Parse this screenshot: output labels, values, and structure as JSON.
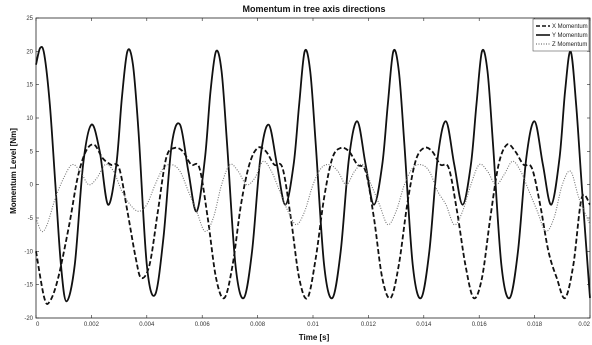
{
  "chart_data": {
    "type": "line",
    "title": "Momentum in tree axis directions",
    "xlabel": "Time [s]",
    "ylabel": "Momentum Level [Nm]",
    "xlim": [
      0,
      0.02
    ],
    "ylim": [
      -20,
      25
    ],
    "x_ticks": [
      0,
      0.002,
      0.004,
      0.006,
      0.008,
      0.01,
      0.012,
      0.014,
      0.016,
      0.018,
      0.02
    ],
    "x_tick_labels": [
      "0",
      "0.002",
      "0.004",
      "0.006",
      "0.008",
      "0.01",
      "0.012",
      "0.014",
      "0.016",
      "0.018",
      "0.02"
    ],
    "y_ticks": [
      -20,
      -15,
      -10,
      -5,
      0,
      5,
      10,
      15,
      20,
      25
    ],
    "y_tick_labels": [
      "-20",
      "-15",
      "-10",
      "-5",
      "0",
      "5",
      "10",
      "15",
      "20",
      "25"
    ],
    "grid": false,
    "legend_position": "top-right",
    "series": [
      {
        "name": "X Momentum",
        "line_style": "dashed",
        "color": "#111111",
        "x": [
          0,
          0.0003,
          0.0005,
          0.0008,
          0.0012,
          0.0015,
          0.0018,
          0.0021,
          0.0024,
          0.0027,
          0.003,
          0.0033,
          0.0036,
          0.0038,
          0.0041,
          0.0044,
          0.0047,
          0.005,
          0.0053,
          0.0056,
          0.0059,
          0.0062,
          0.0065,
          0.0068,
          0.0071,
          0.0074,
          0.0077,
          0.008,
          0.0083,
          0.0086,
          0.0089,
          0.0092,
          0.0095,
          0.0098,
          0.0101,
          0.0104,
          0.0107,
          0.011,
          0.0113,
          0.0116,
          0.0119,
          0.0122,
          0.0125,
          0.0128,
          0.0131,
          0.0134,
          0.0137,
          0.014,
          0.0143,
          0.0146,
          0.0149,
          0.0152,
          0.0155,
          0.0158,
          0.0161,
          0.0164,
          0.0167,
          0.017,
          0.0173,
          0.0176,
          0.0179,
          0.0182,
          0.0185,
          0.0188,
          0.0191,
          0.0194,
          0.0197,
          0.02
        ],
        "y": [
          -10,
          -17,
          -17.5,
          -14,
          -6,
          1,
          5,
          6,
          4,
          3,
          2.5,
          -4,
          -11,
          -14,
          -12,
          -4,
          4,
          5.5,
          5,
          3,
          2.5,
          -5,
          -14,
          -17,
          -12,
          -3,
          3,
          5.5,
          5,
          3,
          2.5,
          -5,
          -14,
          -17,
          -11,
          -2,
          4,
          5.5,
          5,
          3,
          2,
          -5,
          -14,
          -17,
          -12,
          -3,
          3.5,
          5.5,
          5,
          3,
          2.5,
          -4,
          -12,
          -17,
          -14,
          -5,
          3,
          6,
          5,
          3,
          2.5,
          -3,
          -10,
          -14,
          -17,
          -12,
          -2,
          -3
        ]
      },
      {
        "name": "Y Momentum",
        "line_style": "solid",
        "color": "#111111",
        "x": [
          0,
          0.00015,
          0.0003,
          0.0005,
          0.0007,
          0.0009,
          0.0011,
          0.0014,
          0.0017,
          0.002,
          0.0023,
          0.0026,
          0.0029,
          0.0031,
          0.0033,
          0.0035,
          0.0037,
          0.004,
          0.0043,
          0.0046,
          0.0049,
          0.0052,
          0.0055,
          0.0058,
          0.0061,
          0.0063,
          0.0065,
          0.0067,
          0.0069,
          0.0072,
          0.0075,
          0.0078,
          0.0081,
          0.0084,
          0.0087,
          0.009,
          0.0093,
          0.0095,
          0.0097,
          0.0099,
          0.0101,
          0.0104,
          0.0107,
          0.011,
          0.0113,
          0.0116,
          0.0119,
          0.0122,
          0.0125,
          0.0127,
          0.0129,
          0.0131,
          0.0133,
          0.0136,
          0.0139,
          0.0142,
          0.0145,
          0.0148,
          0.0151,
          0.0154,
          0.0157,
          0.0159,
          0.0161,
          0.0163,
          0.0165,
          0.0168,
          0.0171,
          0.0174,
          0.0177,
          0.018,
          0.0183,
          0.0186,
          0.0189,
          0.0191,
          0.0193,
          0.0195,
          0.0197,
          0.02
        ],
        "y": [
          18,
          20.5,
          19.5,
          12,
          0,
          -12,
          -17.5,
          -12,
          3,
          9,
          5,
          -3,
          3,
          13,
          20,
          18,
          8,
          -12,
          -16.5,
          -8,
          6,
          9,
          2,
          -4,
          4,
          14,
          20,
          17,
          6,
          -12,
          -17,
          -10,
          4,
          9,
          3,
          -3,
          3,
          12,
          20,
          17,
          6,
          -12,
          -17,
          -10,
          4,
          9.5,
          3,
          -3,
          3,
          12,
          20,
          17,
          6,
          -12,
          -17,
          -10,
          4,
          9.5,
          3,
          -3,
          3,
          12,
          20,
          17,
          6,
          -12,
          -17,
          -10,
          4,
          9.5,
          3,
          -3,
          4,
          14,
          20,
          12,
          0,
          -17
        ]
      },
      {
        "name": "Z Momentum",
        "line_style": "dotted",
        "color": "#777777",
        "x": [
          0,
          0.0002,
          0.0004,
          0.0007,
          0.001,
          0.0013,
          0.0016,
          0.0019,
          0.0022,
          0.0025,
          0.0028,
          0.0031,
          0.0034,
          0.0037,
          0.004,
          0.0043,
          0.0046,
          0.0049,
          0.0052,
          0.0055,
          0.0058,
          0.0061,
          0.0064,
          0.0067,
          0.007,
          0.0073,
          0.0076,
          0.0079,
          0.0082,
          0.0085,
          0.0088,
          0.0091,
          0.0094,
          0.0097,
          0.01,
          0.0103,
          0.0106,
          0.0109,
          0.0112,
          0.0115,
          0.0118,
          0.0121,
          0.0124,
          0.0127,
          0.013,
          0.0133,
          0.0136,
          0.0139,
          0.0142,
          0.0145,
          0.0148,
          0.0151,
          0.0154,
          0.0157,
          0.016,
          0.0163,
          0.0166,
          0.0169,
          0.0172,
          0.0175,
          0.0178,
          0.0181,
          0.0184,
          0.0187,
          0.019,
          0.0193,
          0.0196,
          0.02
        ],
        "y": [
          -5,
          -7,
          -6,
          -2,
          1,
          3,
          2,
          0,
          1,
          3,
          2,
          -1,
          -3,
          -4,
          -3,
          0,
          2.5,
          3,
          2,
          -1,
          -4,
          -7,
          -5,
          0,
          3,
          2,
          0,
          1,
          3.5,
          2,
          -1,
          -4,
          -6,
          -4,
          0,
          2.5,
          3,
          2,
          0,
          2,
          3,
          0,
          -3,
          -6,
          -4,
          0,
          2.5,
          3,
          2,
          -1,
          -3,
          -6,
          -4,
          0,
          3,
          2,
          0,
          1.5,
          3.5,
          2,
          -1,
          -4,
          -7,
          -5,
          0,
          2,
          -2,
          -6
        ]
      }
    ]
  }
}
